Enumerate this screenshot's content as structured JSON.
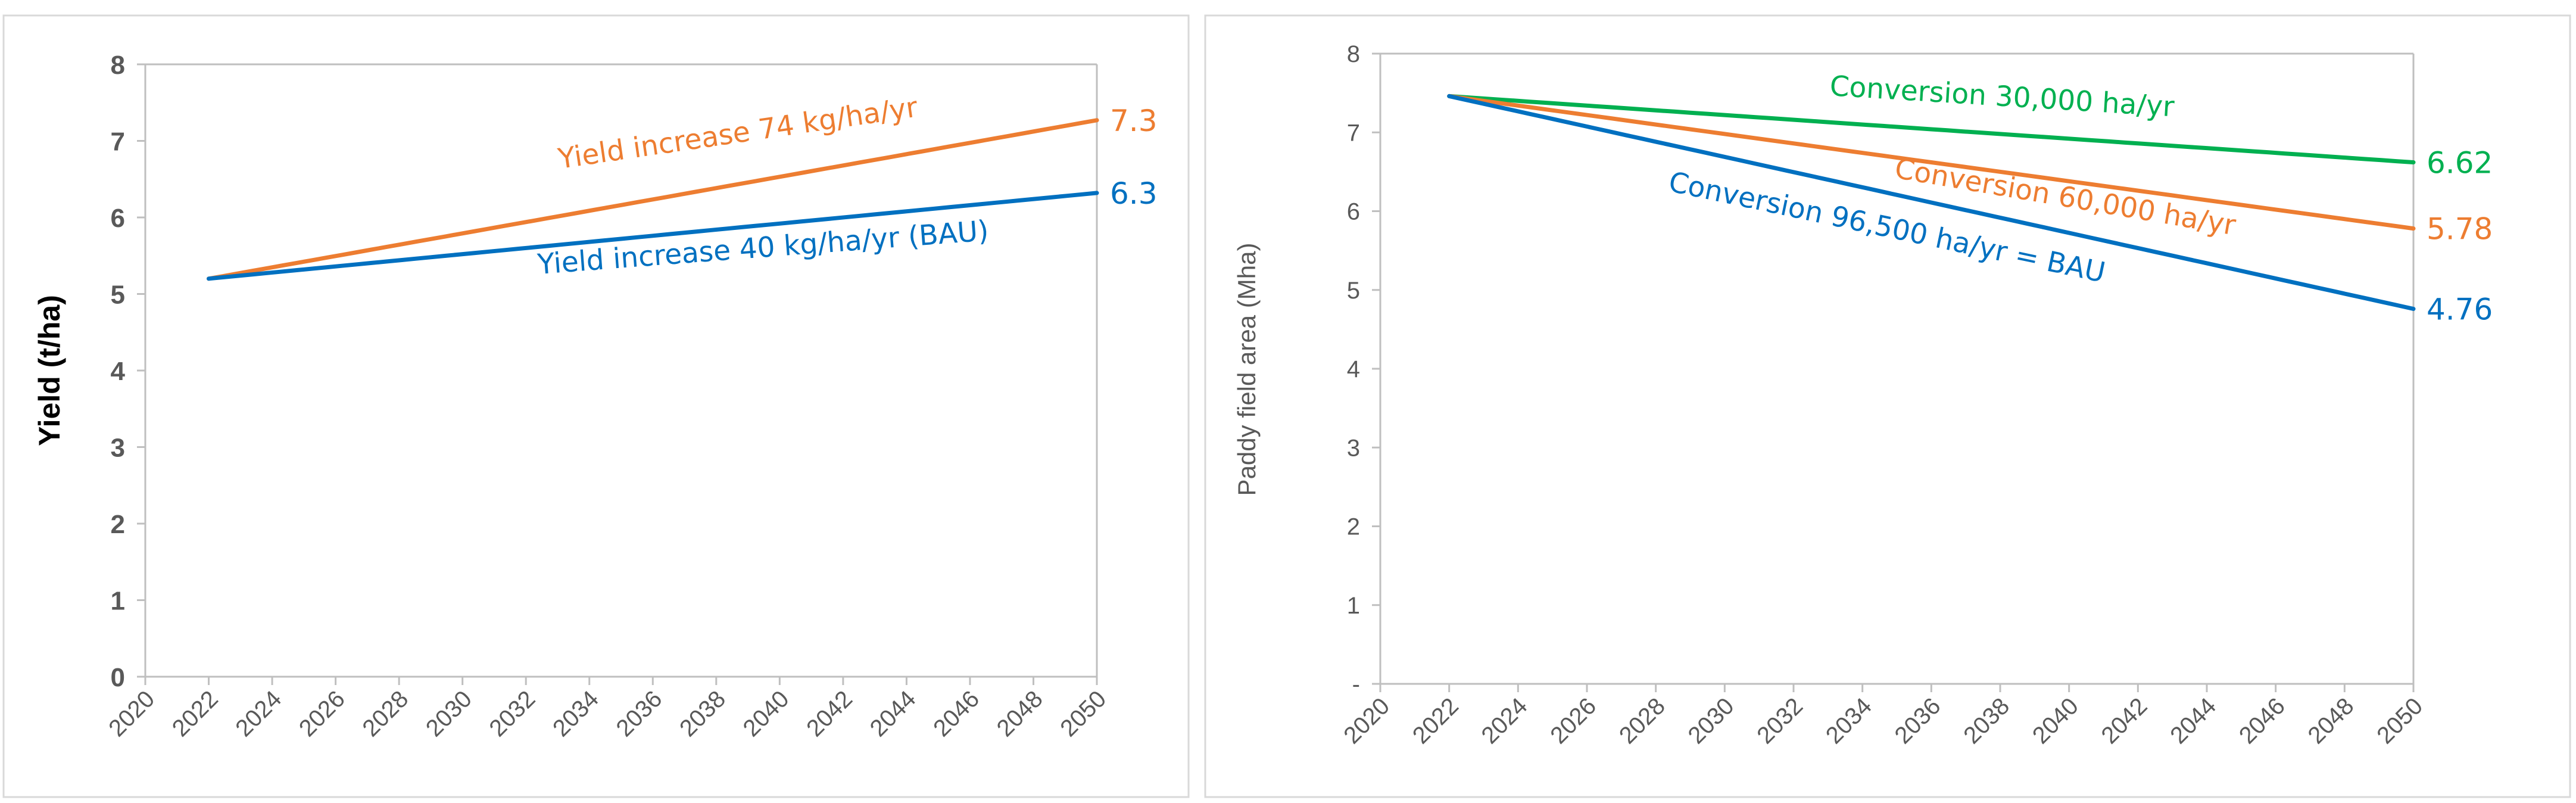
{
  "chart_data": [
    {
      "type": "line",
      "title": "",
      "xlabel": "",
      "ylabel": "Yield (t/ha)",
      "xlim": [
        2020,
        2050
      ],
      "ylim": [
        0,
        8
      ],
      "x_ticks": [
        "2020",
        "2022",
        "2024",
        "2026",
        "2028",
        "2030",
        "2032",
        "2034",
        "2036",
        "2038",
        "2040",
        "2042",
        "2044",
        "2046",
        "2048",
        "2050"
      ],
      "y_ticks": [
        "0",
        "1",
        "2",
        "3",
        "4",
        "5",
        "6",
        "7",
        "8"
      ],
      "grid": false,
      "series": [
        {
          "name": "Yield increase 74 kg/ha/yr",
          "color": "#ed7d31",
          "x": [
            2022,
            2050
          ],
          "values": [
            5.2,
            7.27
          ],
          "end_label": "7.3",
          "annotation": "Yield increase 74 kg/ha/yr"
        },
        {
          "name": "Yield increase 40 kg/ha/yr (BAU)",
          "color": "#0070c0",
          "x": [
            2022,
            2050
          ],
          "values": [
            5.2,
            6.32
          ],
          "end_label": "6.3",
          "annotation": "Yield increase 40 kg/ha/yr (BAU)"
        }
      ]
    },
    {
      "type": "line",
      "title": "",
      "xlabel": "",
      "ylabel": "Paddy field area  (Mha)",
      "xlim": [
        2020,
        2050
      ],
      "ylim": [
        0,
        8
      ],
      "x_ticks": [
        "2020",
        "2022",
        "2024",
        "2026",
        "2028",
        "2030",
        "2032",
        "2034",
        "2036",
        "2038",
        "2040",
        "2042",
        "2044",
        "2046",
        "2048",
        "2050"
      ],
      "y_ticks": [
        "-",
        "1",
        "2",
        "3",
        "4",
        "5",
        "6",
        "7",
        "8"
      ],
      "grid": false,
      "series": [
        {
          "name": "Conversion 30,000 ha/yr",
          "color": "#00b050",
          "x": [
            2022,
            2050
          ],
          "values": [
            7.46,
            6.62
          ],
          "end_label": "6.62",
          "annotation": "Conversion 30,000 ha/yr"
        },
        {
          "name": "Conversion 60,000 ha/yr",
          "color": "#ed7d31",
          "x": [
            2022,
            2050
          ],
          "values": [
            7.46,
            5.78
          ],
          "end_label": "5.78",
          "annotation": "Conversion 60,000 ha/yr"
        },
        {
          "name": "Conversion 96,500 ha/yr = BAU",
          "color": "#0070c0",
          "x": [
            2022,
            2050
          ],
          "values": [
            7.46,
            4.76
          ],
          "end_label": "4.76",
          "annotation": "Conversion 96,500 ha/yr = BAU"
        }
      ]
    }
  ]
}
